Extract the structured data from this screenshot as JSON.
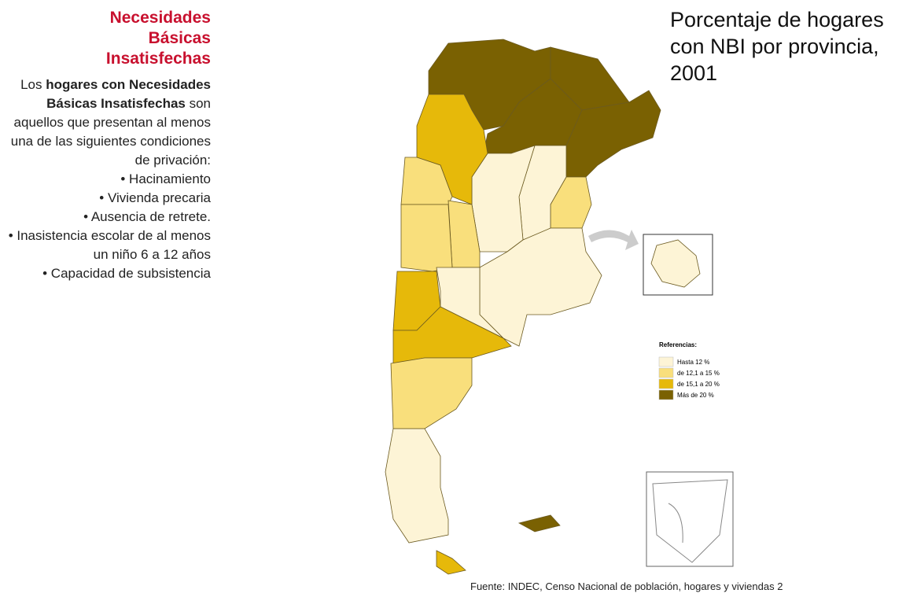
{
  "sidebar": {
    "title": "Necesidades Básicas Insatisfechas",
    "intro": [
      "Los ",
      "hogares con Necesidades Básicas Insatisfechas",
      " son aquellos que presentan al menos una de las siguientes condiciones de privación:"
    ],
    "conditions": [
      "• Hacinamiento",
      "• Vivienda precaria",
      "• Ausencia de retrete.",
      "• Inasistencia escolar de al menos un niño 6 a 12 años",
      "• Capacidad de subsistencia"
    ]
  },
  "map": {
    "title": "Porcentaje de hogares con NBI por provincia, 2001",
    "legend": {
      "title": "Referencias:",
      "items": [
        {
          "label": "Hasta 12 %",
          "color": "#fdf4d6"
        },
        {
          "label": "de 12,1 a 15 %",
          "color": "#f9df7c"
        },
        {
          "label": "de 15,1 a 20 %",
          "color": "#e6b90a"
        },
        {
          "label": "Más de 20 %",
          "color": "#7a6102"
        }
      ]
    },
    "source": "Fuente: INDEC, Censo Nacional de población, hogares y viviendas 2"
  }
}
